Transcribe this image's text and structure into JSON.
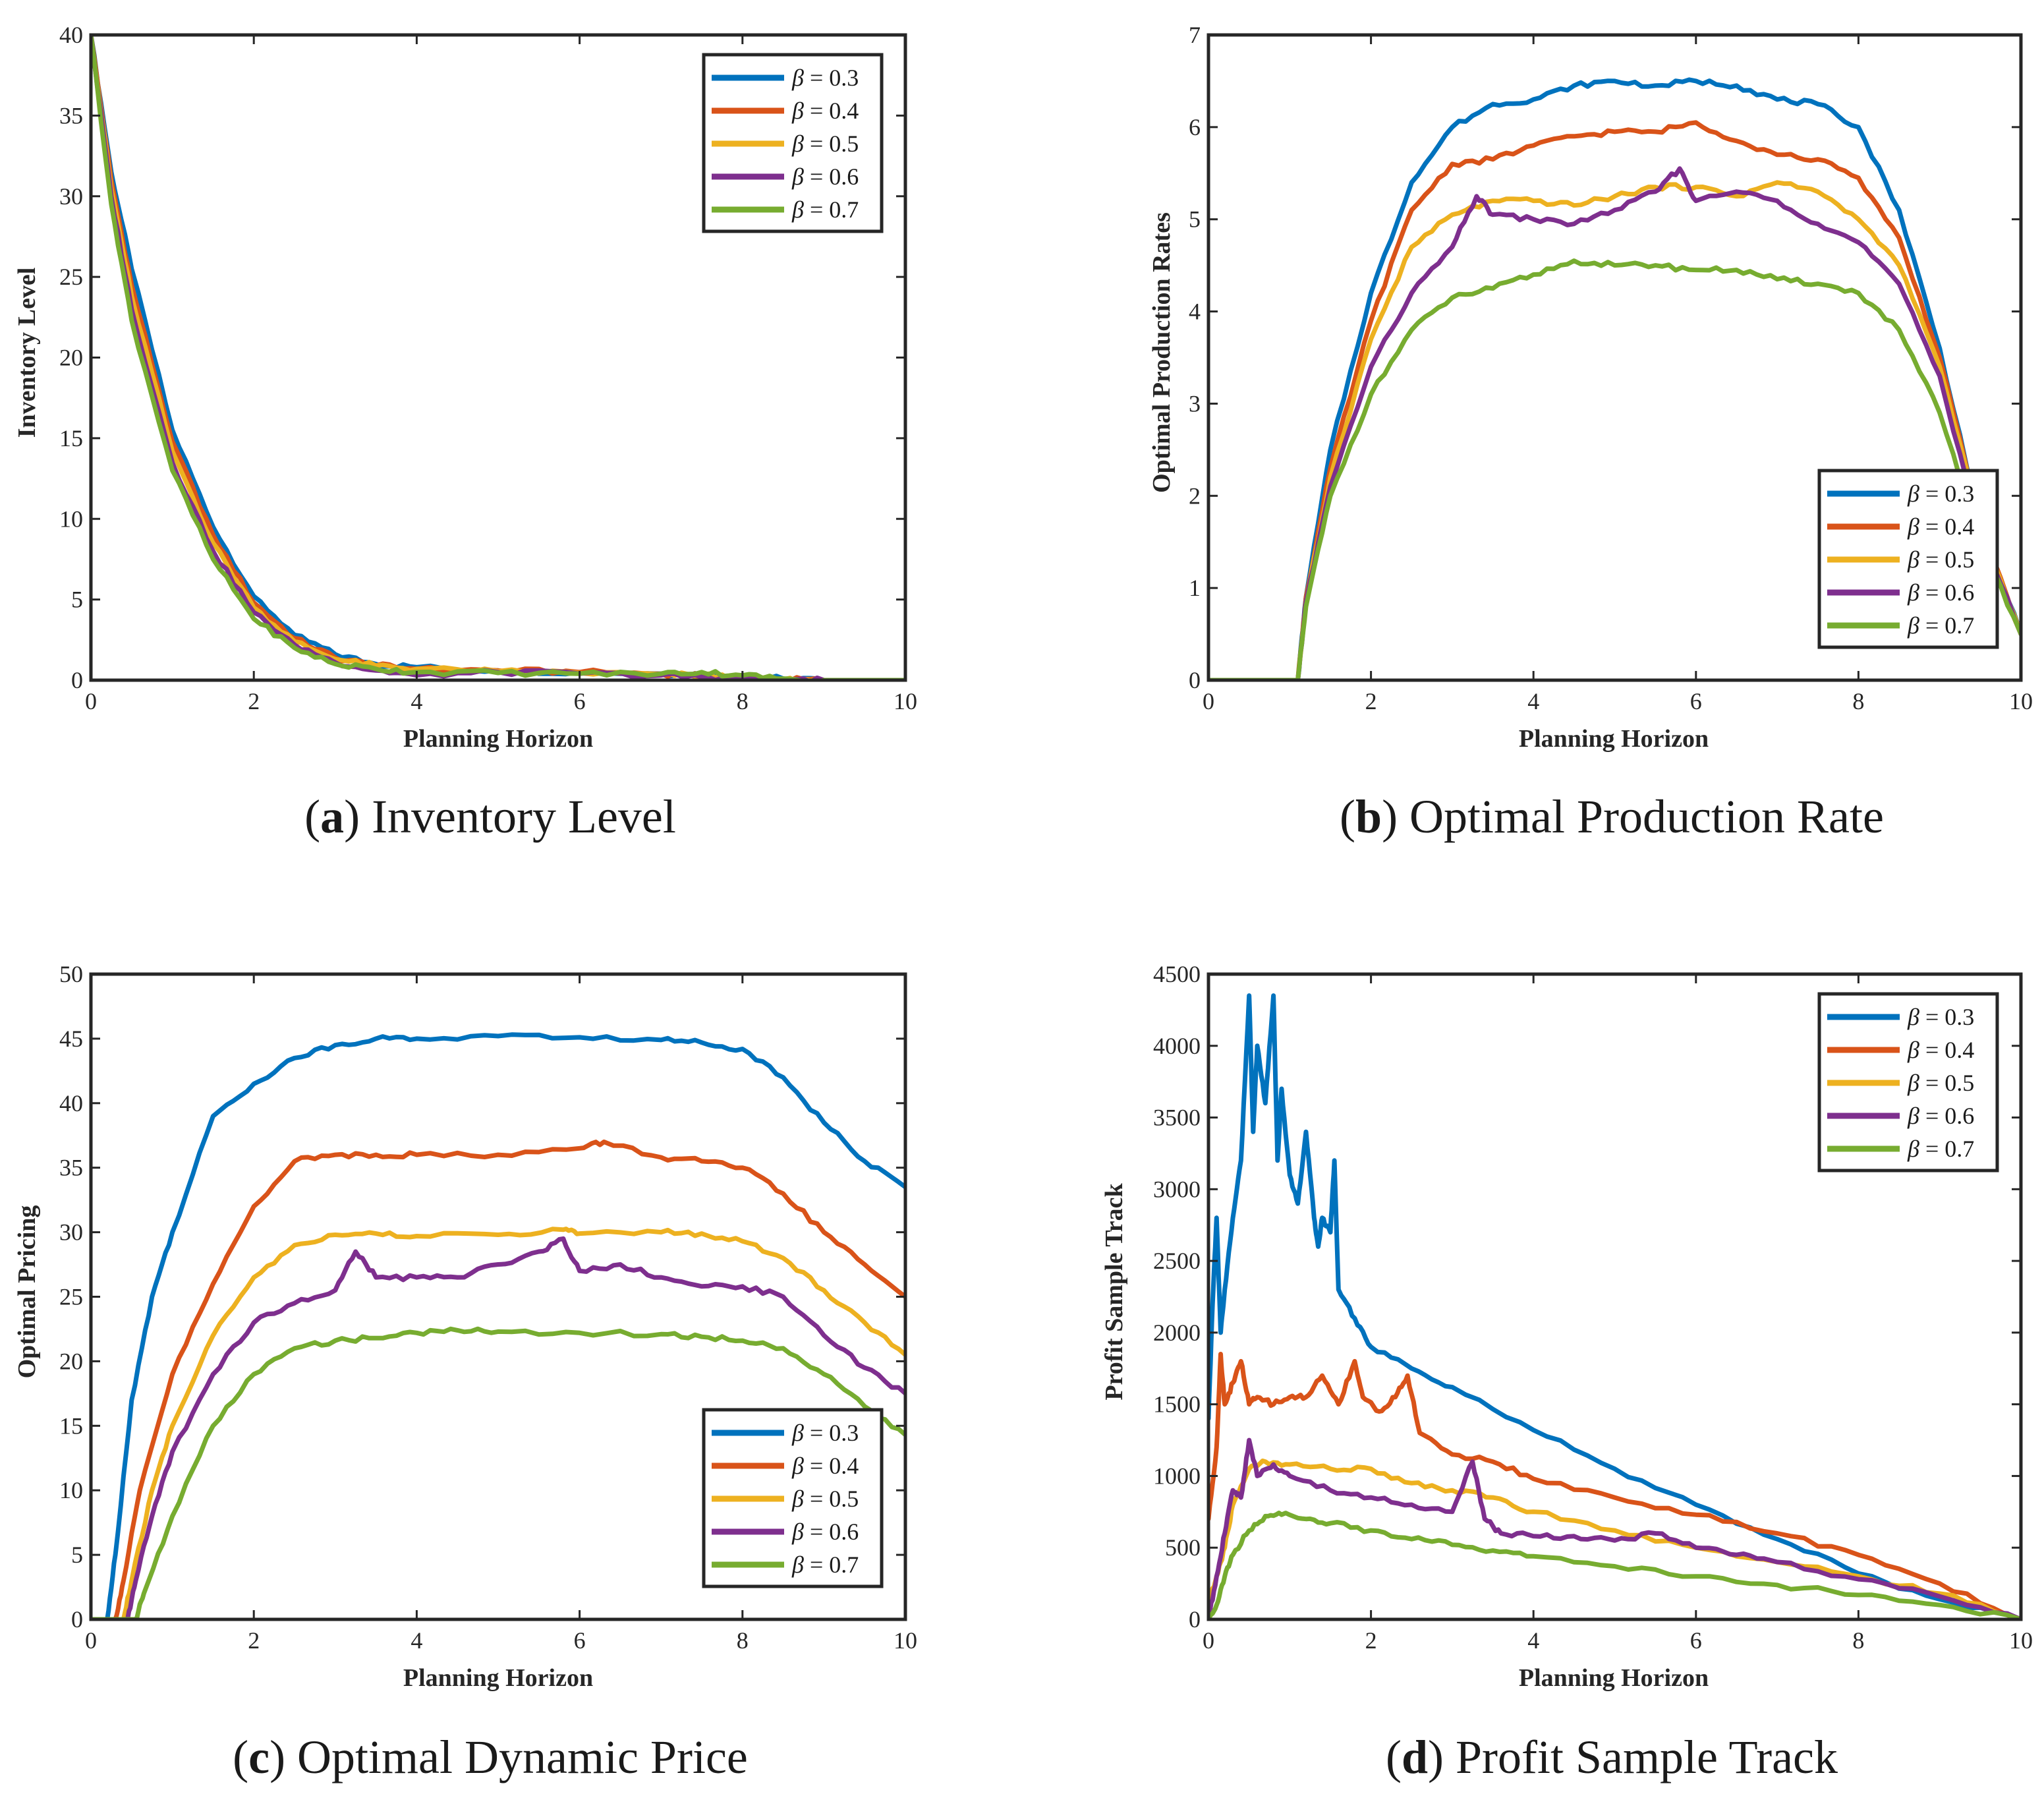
{
  "colors": {
    "series": [
      "#0072BD",
      "#D95319",
      "#EDB120",
      "#7E2F8E",
      "#77AC30"
    ],
    "axes": "#262626",
    "background": "#ffffff"
  },
  "chart_data": [
    {
      "id": "a",
      "type": "line",
      "caption_letter": "a",
      "caption_text": "Inventory Level",
      "xlabel": "Planning Horizon",
      "ylabel": "Inventory Level",
      "xlim": [
        0,
        10
      ],
      "ylim": [
        0,
        40
      ],
      "xticks": [
        0,
        2,
        4,
        6,
        8,
        10
      ],
      "yticks": [
        0,
        5,
        10,
        15,
        20,
        25,
        30,
        35,
        40
      ],
      "legend_position": "top-right",
      "series": [
        {
          "name": "β = 0.3",
          "beta": "0.3",
          "x": [
            0,
            0.25,
            0.5,
            1,
            1.5,
            2,
            2.5,
            3,
            3.5,
            4,
            5,
            6,
            7,
            7.5,
            8,
            8.5,
            9,
            10
          ],
          "y": [
            40,
            31.5,
            25.5,
            15.5,
            9.5,
            5.2,
            2.8,
            1.6,
            1.0,
            0.8,
            0.6,
            0.5,
            0.4,
            0.35,
            0.25,
            0.1,
            0,
            0
          ]
        },
        {
          "name": "β = 0.4",
          "beta": "0.4",
          "x": [
            0,
            0.25,
            0.5,
            1,
            1.5,
            2,
            2.5,
            3,
            3.5,
            4,
            5,
            6,
            7,
            7.5,
            8,
            8.5,
            9,
            10
          ],
          "y": [
            40,
            31,
            24.5,
            14.8,
            9,
            4.8,
            2.6,
            1.4,
            0.9,
            0.7,
            0.6,
            0.5,
            0.4,
            0.3,
            0.2,
            0.05,
            0,
            0
          ]
        },
        {
          "name": "β = 0.5",
          "beta": "0.5",
          "x": [
            0,
            0.25,
            0.5,
            1,
            1.5,
            2,
            2.5,
            3,
            3.5,
            4,
            5,
            6,
            7,
            7.5,
            8,
            8.5,
            9,
            10
          ],
          "y": [
            40,
            30.5,
            23.8,
            14.2,
            8.5,
            4.5,
            2.4,
            1.3,
            0.9,
            0.7,
            0.55,
            0.45,
            0.35,
            0.3,
            0.15,
            0.05,
            0,
            0
          ]
        },
        {
          "name": "β = 0.6",
          "beta": "0.6",
          "x": [
            0,
            0.25,
            0.5,
            1,
            1.5,
            2,
            2.5,
            3,
            3.5,
            4,
            5,
            6,
            7,
            7.5,
            8,
            8.5,
            9,
            10
          ],
          "y": [
            40,
            30,
            23,
            13.5,
            8,
            4.2,
            2.2,
            1.1,
            0.6,
            0.3,
            0.5,
            0.4,
            0.3,
            0.2,
            0.1,
            0.05,
            0,
            0
          ]
        },
        {
          "name": "β = 0.7",
          "beta": "0.7",
          "x": [
            0,
            0.25,
            0.5,
            1,
            1.5,
            2,
            2.5,
            3,
            3.5,
            4,
            5,
            6,
            7,
            7.5,
            8,
            8.5,
            9,
            10
          ],
          "y": [
            40,
            29.5,
            22.3,
            13,
            7.5,
            3.8,
            2.0,
            1.0,
            0.7,
            0.5,
            0.45,
            0.4,
            0.4,
            0.5,
            0.3,
            0.1,
            0,
            0
          ]
        }
      ]
    },
    {
      "id": "b",
      "type": "line",
      "caption_letter": "b",
      "caption_text": "Optimal Production Rate",
      "xlabel": "Planning Horizon",
      "ylabel": "Optimal Production Rates",
      "xlim": [
        0,
        10
      ],
      "ylim": [
        0,
        7
      ],
      "xticks": [
        0,
        2,
        4,
        6,
        8,
        10
      ],
      "yticks": [
        0,
        1,
        2,
        3,
        4,
        5,
        6,
        7
      ],
      "legend_position": "bottom-right",
      "series": [
        {
          "name": "β = 0.3",
          "beta": "0.3",
          "x": [
            0,
            1.1,
            1.2,
            1.5,
            2,
            2.5,
            3,
            3.5,
            4,
            4.5,
            5,
            5.5,
            6,
            6.5,
            7,
            7.5,
            8,
            8.5,
            9,
            9.5,
            10
          ],
          "y": [
            0,
            0,
            0.9,
            2.5,
            4.2,
            5.4,
            6.0,
            6.25,
            6.3,
            6.45,
            6.5,
            6.45,
            6.5,
            6.45,
            6.3,
            6.25,
            6.0,
            5.1,
            3.6,
            1.7,
            0.5
          ]
        },
        {
          "name": "β = 0.4",
          "beta": "0.4",
          "x": [
            0,
            1.1,
            1.2,
            1.5,
            2,
            2.5,
            3,
            3.5,
            4,
            4.5,
            5,
            5.5,
            6,
            6.5,
            7,
            7.5,
            8,
            8.5,
            9,
            9.5,
            10
          ],
          "y": [
            0,
            0,
            0.9,
            2.3,
            3.9,
            5.1,
            5.6,
            5.65,
            5.8,
            5.9,
            5.95,
            5.95,
            6.05,
            5.85,
            5.7,
            5.65,
            5.45,
            4.8,
            3.5,
            1.7,
            0.5
          ]
        },
        {
          "name": "β = 0.5",
          "beta": "0.5",
          "x": [
            0,
            1.1,
            1.2,
            1.5,
            2,
            2.5,
            3,
            3.5,
            4,
            4.5,
            5,
            5.5,
            6,
            6.5,
            7,
            7.5,
            8,
            8.5,
            9,
            9.5,
            10
          ],
          "y": [
            0,
            0,
            0.85,
            2.2,
            3.7,
            4.7,
            5.05,
            5.2,
            5.2,
            5.15,
            5.25,
            5.35,
            5.35,
            5.25,
            5.4,
            5.3,
            5.0,
            4.5,
            3.4,
            1.7,
            0.5
          ]
        },
        {
          "name": "β = 0.6",
          "beta": "0.6",
          "x": [
            0,
            1.1,
            1.2,
            1.5,
            2,
            2.5,
            3,
            3.3,
            3.5,
            4,
            4.5,
            5,
            5.5,
            5.8,
            6,
            6.5,
            7,
            7.5,
            8,
            8.5,
            9,
            9.5,
            10
          ],
          "y": [
            0,
            0,
            0.85,
            2.1,
            3.4,
            4.2,
            4.7,
            5.25,
            5.05,
            5.0,
            4.95,
            5.1,
            5.3,
            5.55,
            5.2,
            5.3,
            5.2,
            4.95,
            4.75,
            4.3,
            3.3,
            1.6,
            0.5
          ]
        },
        {
          "name": "β = 0.7",
          "beta": "0.7",
          "x": [
            0,
            1.1,
            1.2,
            1.5,
            2,
            2.5,
            3,
            3.5,
            4,
            4.5,
            5,
            5.5,
            6,
            6.5,
            7,
            7.5,
            8,
            8.5,
            9,
            9.5,
            10
          ],
          "y": [
            0,
            0,
            0.8,
            2.0,
            3.1,
            3.8,
            4.15,
            4.25,
            4.4,
            4.55,
            4.5,
            4.5,
            4.45,
            4.45,
            4.35,
            4.3,
            4.2,
            3.8,
            2.9,
            1.5,
            0.5
          ]
        }
      ]
    },
    {
      "id": "c",
      "type": "line",
      "caption_letter": "c",
      "caption_text": "Optimal Dynamic Price",
      "xlabel": "Planning Horizon",
      "ylabel": "Optimal Pricing",
      "xlim": [
        0,
        10
      ],
      "ylim": [
        0,
        50
      ],
      "xticks": [
        0,
        2,
        4,
        6,
        8,
        10
      ],
      "yticks": [
        0,
        5,
        10,
        15,
        20,
        25,
        30,
        35,
        40,
        45,
        50
      ],
      "legend_position": "bottom-right",
      "series": [
        {
          "name": "β = 0.3",
          "beta": "0.3",
          "x": [
            0,
            0.2,
            0.3,
            0.5,
            0.75,
            1,
            1.5,
            2,
            2.5,
            3,
            3.5,
            4,
            5,
            6,
            7,
            7.5,
            8,
            8.5,
            9,
            9.5,
            10
          ],
          "y": [
            0,
            0,
            5,
            17,
            25,
            30,
            39,
            41.5,
            43.5,
            44.5,
            45,
            45,
            45.2,
            45.1,
            44.9,
            44.7,
            44.2,
            42,
            38.5,
            35.5,
            33.5
          ]
        },
        {
          "name": "β = 0.4",
          "beta": "0.4",
          "x": [
            0,
            0.3,
            0.4,
            0.6,
            1,
            1.5,
            2,
            2.5,
            3,
            3.5,
            4,
            5,
            6,
            6.3,
            7,
            7.5,
            8,
            8.5,
            9,
            9.5,
            10
          ],
          "y": [
            0,
            0,
            3,
            10,
            19,
            26,
            32,
            35.5,
            36,
            36,
            36,
            36,
            36.5,
            37,
            35.8,
            35.5,
            35,
            33,
            30,
            27.5,
            25
          ]
        },
        {
          "name": "β = 0.5",
          "beta": "0.5",
          "x": [
            0,
            0.4,
            0.5,
            0.75,
            1,
            1.5,
            2,
            2.5,
            3,
            3.5,
            4,
            5,
            5.8,
            6,
            7,
            7.5,
            8,
            8.5,
            9,
            9.5,
            10
          ],
          "y": [
            0,
            0,
            3,
            10,
            15,
            22,
            26.5,
            29,
            29.8,
            29.9,
            29.7,
            29.8,
            30.2,
            29.9,
            30,
            29.9,
            29.3,
            28,
            25.5,
            23,
            20.5
          ]
        },
        {
          "name": "β = 0.6",
          "beta": "0.6",
          "x": [
            0,
            0.45,
            0.55,
            0.75,
            1,
            1.5,
            2,
            2.5,
            3,
            3.25,
            3.5,
            4,
            4.5,
            5,
            5.5,
            5.8,
            6,
            6.5,
            7,
            7.5,
            8,
            8.5,
            9,
            9.5,
            10
          ],
          "y": [
            0,
            0,
            3,
            8,
            13,
            19,
            23,
            24.5,
            25.5,
            28.5,
            26.5,
            26.5,
            26.5,
            27.5,
            28.5,
            29.5,
            27,
            27.5,
            26.5,
            25.8,
            25.8,
            25,
            22,
            19.5,
            17.5
          ]
        },
        {
          "name": "β = 0.7",
          "beta": "0.7",
          "x": [
            0,
            0.55,
            0.65,
            1,
            1.5,
            2,
            2.5,
            3,
            3.5,
            4,
            4.5,
            5,
            6,
            7,
            7.5,
            8,
            8.5,
            9,
            9.5,
            10
          ],
          "y": [
            0,
            0,
            2,
            8,
            15,
            19,
            21,
            21.6,
            21.8,
            22.2,
            22.4,
            22.3,
            22.2,
            22.1,
            21.9,
            21.6,
            21,
            19,
            16.5,
            14.3
          ]
        }
      ]
    },
    {
      "id": "d",
      "type": "line",
      "caption_letter": "d",
      "caption_text": "Profit Sample Track",
      "xlabel": "Planning Horizon",
      "ylabel": "Profit Sample Track",
      "xlim": [
        0,
        10
      ],
      "ylim": [
        0,
        4500
      ],
      "xticks": [
        0,
        2,
        4,
        6,
        8,
        10
      ],
      "yticks": [
        0,
        500,
        1000,
        1500,
        2000,
        2500,
        3000,
        3500,
        4000,
        4500
      ],
      "legend_position": "top-right",
      "series": [
        {
          "name": "β = 0.3",
          "beta": "0.3",
          "x": [
            0,
            0.05,
            0.1,
            0.15,
            0.2,
            0.3,
            0.4,
            0.5,
            0.55,
            0.6,
            0.7,
            0.8,
            0.85,
            0.9,
            1,
            1.1,
            1.2,
            1.3,
            1.35,
            1.4,
            1.5,
            1.55,
            1.6,
            1.8,
            2,
            2.5,
            3,
            4,
            5,
            6,
            7,
            8,
            9,
            10
          ],
          "y": [
            1400,
            2200,
            2800,
            2000,
            2300,
            2800,
            3200,
            4350,
            3400,
            4000,
            3600,
            4350,
            3200,
            3700,
            3100,
            2900,
            3400,
            2800,
            2600,
            2800,
            2700,
            3200,
            2300,
            2100,
            1900,
            1750,
            1620,
            1320,
            1050,
            800,
            560,
            320,
            140,
            0
          ]
        },
        {
          "name": "β = 0.4",
          "beta": "0.4",
          "x": [
            0,
            0.1,
            0.15,
            0.2,
            0.3,
            0.4,
            0.5,
            0.6,
            0.8,
            1,
            1.2,
            1.4,
            1.6,
            1.8,
            1.9,
            2.1,
            2.3,
            2.45,
            2.6,
            3,
            3.5,
            4,
            5,
            6,
            7,
            8,
            9,
            10
          ],
          "y": [
            700,
            1200,
            1850,
            1500,
            1650,
            1800,
            1500,
            1550,
            1500,
            1550,
            1550,
            1700,
            1500,
            1800,
            1550,
            1450,
            1550,
            1700,
            1300,
            1150,
            1100,
            980,
            850,
            730,
            600,
            450,
            250,
            0
          ]
        },
        {
          "name": "β = 0.5",
          "beta": "0.5",
          "x": [
            0,
            0.1,
            0.2,
            0.3,
            0.5,
            0.7,
            1,
            1.5,
            2,
            2.5,
            3,
            3.5,
            4,
            5,
            6,
            7,
            8,
            9,
            10
          ],
          "y": [
            100,
            300,
            500,
            800,
            1050,
            1100,
            1080,
            1050,
            1050,
            950,
            900,
            850,
            750,
            620,
            500,
            400,
            300,
            180,
            0
          ]
        },
        {
          "name": "β = 0.6",
          "beta": "0.6",
          "x": [
            0,
            0.1,
            0.2,
            0.3,
            0.4,
            0.5,
            0.6,
            0.8,
            1,
            1.5,
            2,
            2.5,
            3,
            3.25,
            3.4,
            3.6,
            4,
            4.5,
            5,
            5.5,
            6,
            6.5,
            7,
            8,
            9,
            10
          ],
          "y": [
            0,
            300,
            600,
            900,
            850,
            1250,
            1000,
            1080,
            1000,
            900,
            850,
            800,
            750,
            1100,
            700,
            600,
            580,
            580,
            550,
            600,
            500,
            450,
            400,
            280,
            160,
            0
          ]
        },
        {
          "name": "β = 0.7",
          "beta": "0.7",
          "x": [
            0,
            0.1,
            0.2,
            0.3,
            0.5,
            0.7,
            0.9,
            1.2,
            1.5,
            2,
            2.5,
            3,
            3.5,
            4,
            5,
            6,
            7,
            8,
            9,
            10
          ],
          "y": [
            0,
            100,
            300,
            450,
            620,
            720,
            730,
            700,
            670,
            620,
            560,
            520,
            480,
            440,
            370,
            300,
            240,
            170,
            100,
            0
          ]
        }
      ]
    }
  ]
}
